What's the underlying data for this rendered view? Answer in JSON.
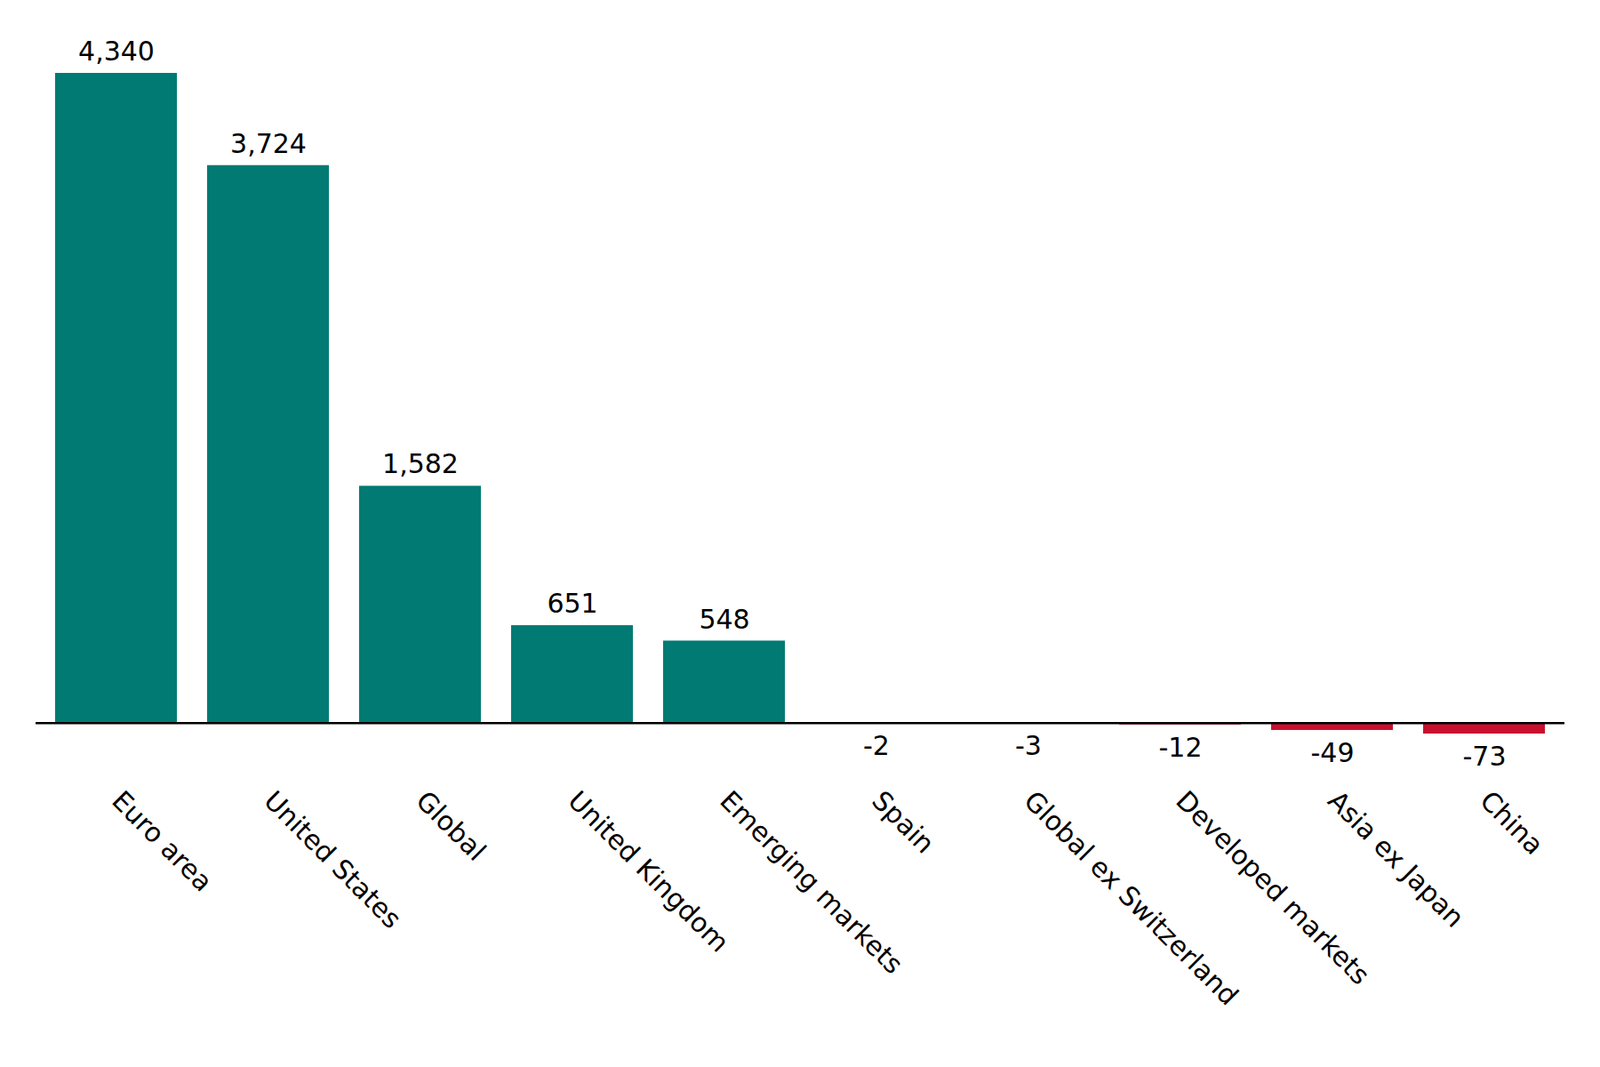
{
  "chart_data": {
    "type": "bar",
    "categories": [
      "Euro area",
      "United States",
      "Global",
      "United Kingdom",
      "Emerging markets",
      "Spain",
      "Global ex Switzerland",
      "Developed markets",
      "Asia ex Japan",
      "China"
    ],
    "values": [
      4340,
      3724,
      1582,
      651,
      548,
      -2,
      -3,
      -12,
      -49,
      -73
    ],
    "value_labels": [
      "4,340",
      "3,724",
      "1,582",
      "651",
      "548",
      "-2",
      "-3",
      "-12",
      "-49",
      "-73"
    ],
    "colors": [
      "#007a73",
      "#007a73",
      "#007a73",
      "#007a73",
      "#007a73",
      "#c8102e",
      "#c8102e",
      "#c8102e",
      "#c8102e",
      "#c8102e"
    ],
    "data_labels": true,
    "tick_labels": "x",
    "grid": false
  }
}
